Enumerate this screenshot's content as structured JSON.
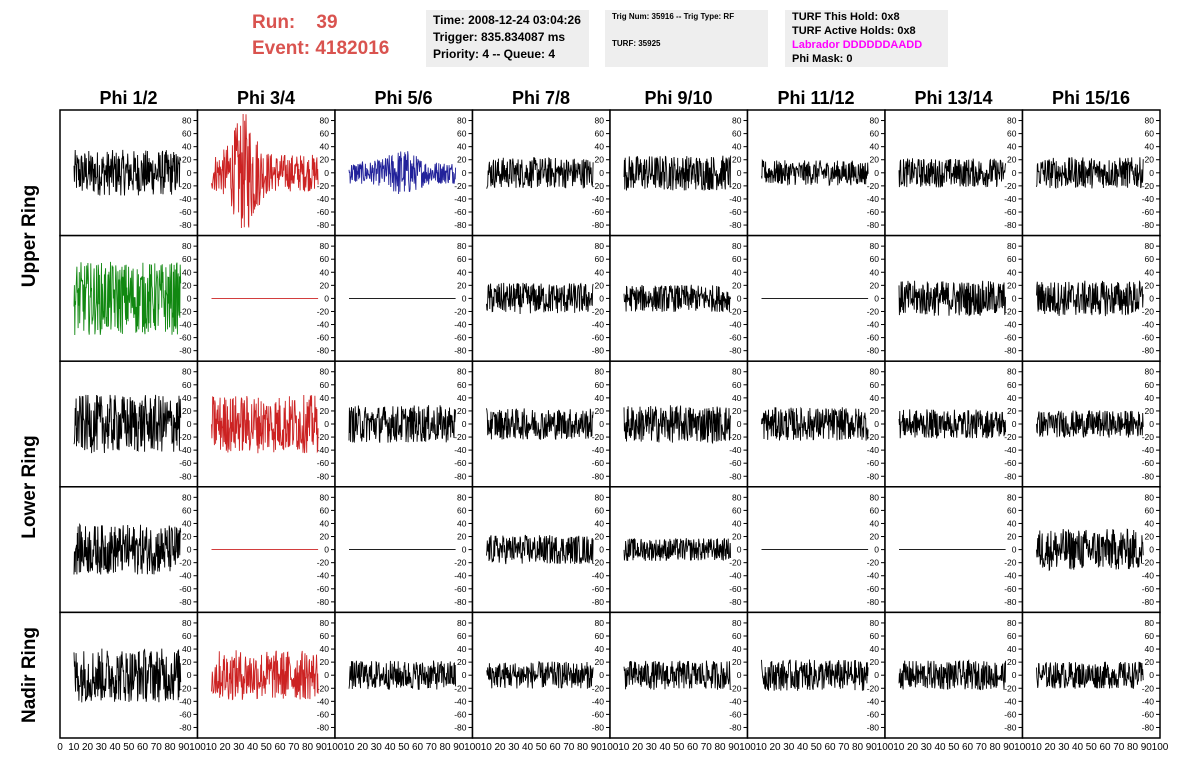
{
  "run": {
    "run_label": "Run:",
    "run_value": "39",
    "event_label": "Event:",
    "event_value": "4182016"
  },
  "time_box": {
    "time": "Time: 2008-12-24 03:04:26",
    "trigger": "Trigger: 835.834087 ms",
    "priority": "Priority: 4 -- Queue: 4"
  },
  "trig_box": {
    "trig": "Trig Num: 35916 -- Trig Type: RF",
    "turf": "TURF: 35925"
  },
  "turf_box": {
    "this_hold": "TURF This Hold: 0x8",
    "active_holds": "TURF Active Holds: 0x8",
    "labrador": "Labrador DDDDDDAADD",
    "phi_mask": "Phi Mask: 0"
  },
  "columns": [
    "Phi 1/2",
    "Phi 3/4",
    "Phi 5/6",
    "Phi 7/8",
    "Phi 9/10",
    "Phi 11/12",
    "Phi 13/14",
    "Phi 15/16"
  ],
  "rings": [
    "Upper Ring",
    "Lower Ring",
    "Nadir Ring"
  ],
  "y_ticks": [
    "80",
    "60",
    "40",
    "20",
    "0",
    "-20",
    "-40",
    "-60",
    "-80"
  ],
  "x_ticks": [
    "0",
    "10",
    "20",
    "30",
    "40",
    "50",
    "60",
    "70",
    "80",
    "90",
    "100"
  ],
  "colors": {
    "red": "#cc2222",
    "blue": "#22229a",
    "green": "#118811",
    "black": "#000000",
    "run_text": "#d9534f",
    "magenta": "#ff00ff"
  },
  "chart_data": {
    "type": "line",
    "xlim": [
      0,
      100
    ],
    "ylim": [
      -90,
      90
    ],
    "note_rows": 5,
    "rows": [
      [
        {
          "color": "black",
          "amp": 22,
          "flat": false
        },
        {
          "color": "red",
          "amp": 45,
          "flat": false
        },
        {
          "color": "blue",
          "amp": 18,
          "flat": false
        },
        {
          "color": "black",
          "amp": 15,
          "flat": false
        },
        {
          "color": "black",
          "amp": 17,
          "flat": false
        },
        {
          "color": "black",
          "amp": 12,
          "flat": false
        },
        {
          "color": "black",
          "amp": 14,
          "flat": false
        },
        {
          "color": "black",
          "amp": 15,
          "flat": false
        }
      ],
      [
        {
          "color": "green",
          "amp": 35,
          "flat": false
        },
        {
          "color": "red",
          "amp": 0,
          "flat": true
        },
        {
          "color": "black",
          "amp": 0,
          "flat": true
        },
        {
          "color": "black",
          "amp": 15,
          "flat": false
        },
        {
          "color": "black",
          "amp": 13,
          "flat": false
        },
        {
          "color": "black",
          "amp": 0,
          "flat": true
        },
        {
          "color": "black",
          "amp": 17,
          "flat": false
        },
        {
          "color": "black",
          "amp": 17,
          "flat": false
        }
      ],
      [
        {
          "color": "black",
          "amp": 28,
          "flat": false
        },
        {
          "color": "red",
          "amp": 28,
          "flat": false
        },
        {
          "color": "black",
          "amp": 18,
          "flat": false
        },
        {
          "color": "black",
          "amp": 15,
          "flat": false
        },
        {
          "color": "black",
          "amp": 18,
          "flat": false
        },
        {
          "color": "black",
          "amp": 16,
          "flat": false
        },
        {
          "color": "black",
          "amp": 14,
          "flat": false
        },
        {
          "color": "black",
          "amp": 13,
          "flat": false
        }
      ],
      [
        {
          "color": "black",
          "amp": 24,
          "flat": false
        },
        {
          "color": "red",
          "amp": 0,
          "flat": true
        },
        {
          "color": "black",
          "amp": 0,
          "flat": true
        },
        {
          "color": "black",
          "amp": 14,
          "flat": false
        },
        {
          "color": "black",
          "amp": 11,
          "flat": false
        },
        {
          "color": "black",
          "amp": 0,
          "flat": true
        },
        {
          "color": "black",
          "amp": 0,
          "flat": true
        },
        {
          "color": "black",
          "amp": 20,
          "flat": false
        }
      ],
      [
        {
          "color": "black",
          "amp": 26,
          "flat": false
        },
        {
          "color": "red",
          "amp": 24,
          "flat": false
        },
        {
          "color": "black",
          "amp": 14,
          "flat": false
        },
        {
          "color": "black",
          "amp": 13,
          "flat": false
        },
        {
          "color": "black",
          "amp": 14,
          "flat": false
        },
        {
          "color": "black",
          "amp": 15,
          "flat": false
        },
        {
          "color": "black",
          "amp": 14,
          "flat": false
        },
        {
          "color": "black",
          "amp": 13,
          "flat": false
        }
      ]
    ]
  }
}
